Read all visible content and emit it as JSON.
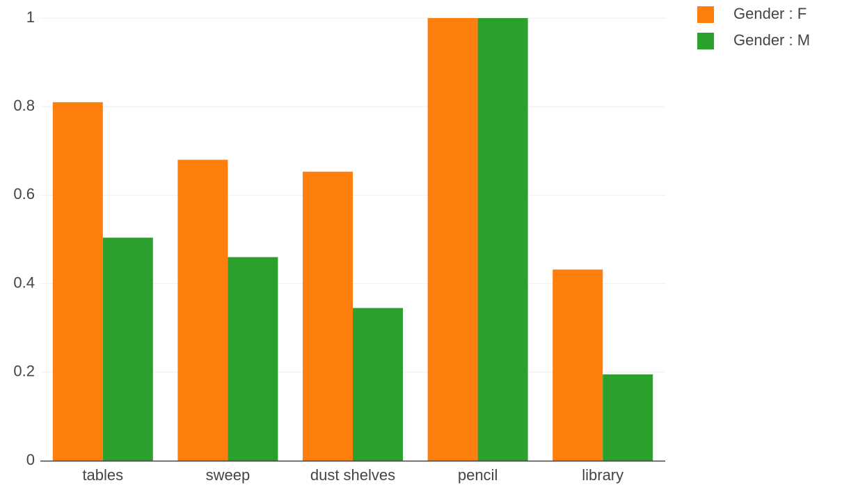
{
  "chart_data": {
    "type": "bar",
    "categories": [
      "tables",
      "sweep",
      "dust shelves",
      "pencil",
      "library"
    ],
    "series": [
      {
        "name": "Gender : F",
        "color": "#ff7f0e",
        "values": [
          0.81,
          0.68,
          0.653,
          1.0,
          0.432
        ]
      },
      {
        "name": "Gender : M",
        "color": "#2ca02c",
        "values": [
          0.504,
          0.46,
          0.345,
          1.0,
          0.195
        ]
      }
    ],
    "ylim": [
      0,
      1
    ],
    "yticks": [
      0,
      0.2,
      0.4,
      0.6,
      0.8,
      1
    ],
    "ytick_labels": [
      "0",
      "0.2",
      "0.4",
      "0.6",
      "0.8",
      "1"
    ],
    "grid": true,
    "legend_position": "top-right",
    "title": "",
    "xlabel": "",
    "ylabel": ""
  }
}
